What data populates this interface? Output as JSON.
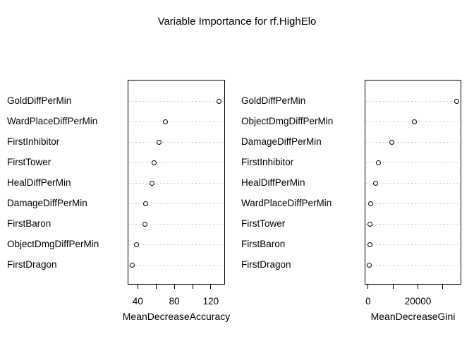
{
  "title": "Variable Importance for rf.HighElo",
  "colors": {
    "background": "#ffffff",
    "foreground": "#000000",
    "gridline": "#c8c8c8",
    "point_fill": "#ffffff",
    "point_stroke": "#000000"
  },
  "chart_data": [
    {
      "type": "scatter",
      "variant": "dotchart",
      "xlabel": "MeanDecreaseAccuracy",
      "categories": [
        "GoldDiffPerMin",
        "WardPlaceDiffPerMin",
        "FirstInhibitor",
        "FirstTower",
        "HealDiffPerMin",
        "DamageDiffPerMin",
        "FirstBaron",
        "ObjectDmgDiffPerMin",
        "FirstDragon"
      ],
      "values": [
        129,
        70,
        63,
        58,
        56,
        49,
        48,
        39,
        34
      ],
      "xlim": [
        29,
        135.5
      ],
      "xticks": [
        40,
        60,
        80,
        100,
        120
      ],
      "xtick_labels": [
        "40",
        "",
        "80",
        "",
        "120"
      ],
      "grid": "dotted-horizontal",
      "point_style": "open-circle",
      "legend": "none"
    },
    {
      "type": "scatter",
      "variant": "dotchart",
      "xlabel": "MeanDecreaseGini",
      "categories": [
        "GoldDiffPerMin",
        "ObjectDmgDiffPerMin",
        "DamageDiffPerMin",
        "FirstInhibitor",
        "HealDiffPerMin",
        "WardPlaceDiffPerMin",
        "FirstTower",
        "FirstBaron",
        "FirstDragon"
      ],
      "values": [
        35700,
        18700,
        9600,
        4200,
        3100,
        900,
        850,
        600,
        450
      ],
      "xlim": [
        -1400,
        37400
      ],
      "xticks": [
        0,
        10000,
        20000,
        30000
      ],
      "xtick_labels": [
        "0",
        "",
        "20000",
        ""
      ],
      "grid": "dotted-horizontal",
      "point_style": "open-circle",
      "legend": "none"
    }
  ]
}
